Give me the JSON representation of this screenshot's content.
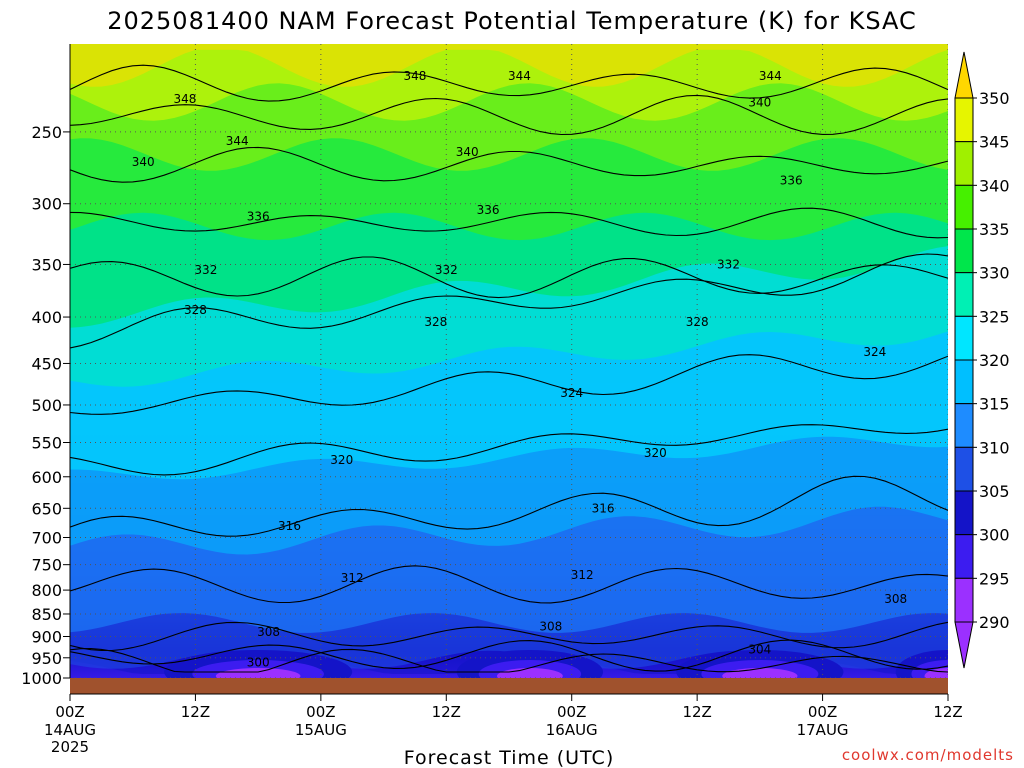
{
  "title": "2025081400 NAM Forecast Potential Temperature (K) for KSAC",
  "credit": "coolwx.com/modelts",
  "colors": {
    "ground": "#a0522d",
    "grid": "#555555",
    "contour": "#000000",
    "credit": "#e0382e"
  },
  "chart_data": {
    "type": "contour",
    "title": "2025081400 NAM Forecast Potential Temperature (K) for KSAC",
    "xlabel": "Forecast Time (UTC)",
    "ylabel": "",
    "y_scale": "log-pressure (reversed)",
    "ylim": [
      1000,
      200
    ],
    "y_ticks": [
      250,
      300,
      350,
      400,
      450,
      500,
      550,
      600,
      650,
      700,
      750,
      800,
      850,
      900,
      950,
      1000
    ],
    "x_ticks": [
      {
        "label": "00Z",
        "date": "14AUG",
        "year": "2025",
        "hour": 0
      },
      {
        "label": "12Z",
        "date": "",
        "year": "",
        "hour": 12
      },
      {
        "label": "00Z",
        "date": "15AUG",
        "year": "",
        "hour": 24
      },
      {
        "label": "12Z",
        "date": "",
        "year": "",
        "hour": 36
      },
      {
        "label": "00Z",
        "date": "16AUG",
        "year": "",
        "hour": 48
      },
      {
        "label": "12Z",
        "date": "",
        "year": "",
        "hour": 60
      },
      {
        "label": "00Z",
        "date": "17AUG",
        "year": "",
        "hour": 72
      },
      {
        "label": "12Z",
        "date": "",
        "year": "",
        "hour": 84
      }
    ],
    "grid": true,
    "contour_interval": 4,
    "fill_levels": [
      {
        "value": 290,
        "color": "#9b30ff"
      },
      {
        "value": 295,
        "color": "#3c1cf0"
      },
      {
        "value": 300,
        "color": "#1414c8"
      },
      {
        "value": 305,
        "color": "#1e50e6"
      },
      {
        "value": 310,
        "color": "#1e8cff"
      },
      {
        "value": 315,
        "color": "#00bfff"
      },
      {
        "value": 320,
        "color": "#00e6ff"
      },
      {
        "value": 325,
        "color": "#00f0b4"
      },
      {
        "value": 330,
        "color": "#00e64b"
      },
      {
        "value": 335,
        "color": "#46f000"
      },
      {
        "value": 340,
        "color": "#a0f000"
      },
      {
        "value": 345,
        "color": "#e6f500"
      },
      {
        "value": 350,
        "color": "#ffd700"
      }
    ],
    "colorbar_ticks": [
      350,
      345,
      340,
      335,
      330,
      325,
      320,
      315,
      310,
      305,
      300,
      295,
      290
    ],
    "contours": [
      {
        "value": 300,
        "hour": 18,
        "pres": 962
      },
      {
        "value": 304,
        "hour": 66,
        "pres": 930
      },
      {
        "value": 308,
        "hour": 19,
        "pres": 890
      },
      {
        "value": 308,
        "hour": 46,
        "pres": 878
      },
      {
        "value": 308,
        "hour": 79,
        "pres": 818
      },
      {
        "value": 312,
        "hour": 27,
        "pres": 776
      },
      {
        "value": 312,
        "hour": 49,
        "pres": 770
      },
      {
        "value": 316,
        "hour": 21,
        "pres": 680
      },
      {
        "value": 316,
        "hour": 51,
        "pres": 650
      },
      {
        "value": 320,
        "hour": 26,
        "pres": 575
      },
      {
        "value": 320,
        "hour": 56,
        "pres": 565
      },
      {
        "value": 324,
        "hour": 48,
        "pres": 485
      },
      {
        "value": 324,
        "hour": 77,
        "pres": 437
      },
      {
        "value": 328,
        "hour": 12,
        "pres": 393
      },
      {
        "value": 328,
        "hour": 35,
        "pres": 405
      },
      {
        "value": 328,
        "hour": 60,
        "pres": 405
      },
      {
        "value": 332,
        "hour": 13,
        "pres": 355
      },
      {
        "value": 332,
        "hour": 36,
        "pres": 355
      },
      {
        "value": 332,
        "hour": 63,
        "pres": 350
      },
      {
        "value": 336,
        "hour": 18,
        "pres": 310
      },
      {
        "value": 336,
        "hour": 40,
        "pres": 305
      },
      {
        "value": 336,
        "hour": 69,
        "pres": 283
      },
      {
        "value": 340,
        "hour": 7,
        "pres": 270
      },
      {
        "value": 340,
        "hour": 38,
        "pres": 263
      },
      {
        "value": 340,
        "hour": 66,
        "pres": 232
      },
      {
        "value": 344,
        "hour": 16,
        "pres": 256
      },
      {
        "value": 344,
        "hour": 43,
        "pres": 217
      },
      {
        "value": 344,
        "hour": 67,
        "pres": 217
      },
      {
        "value": 348,
        "hour": 11,
        "pres": 230
      },
      {
        "value": 348,
        "hour": 33,
        "pres": 217
      }
    ]
  }
}
